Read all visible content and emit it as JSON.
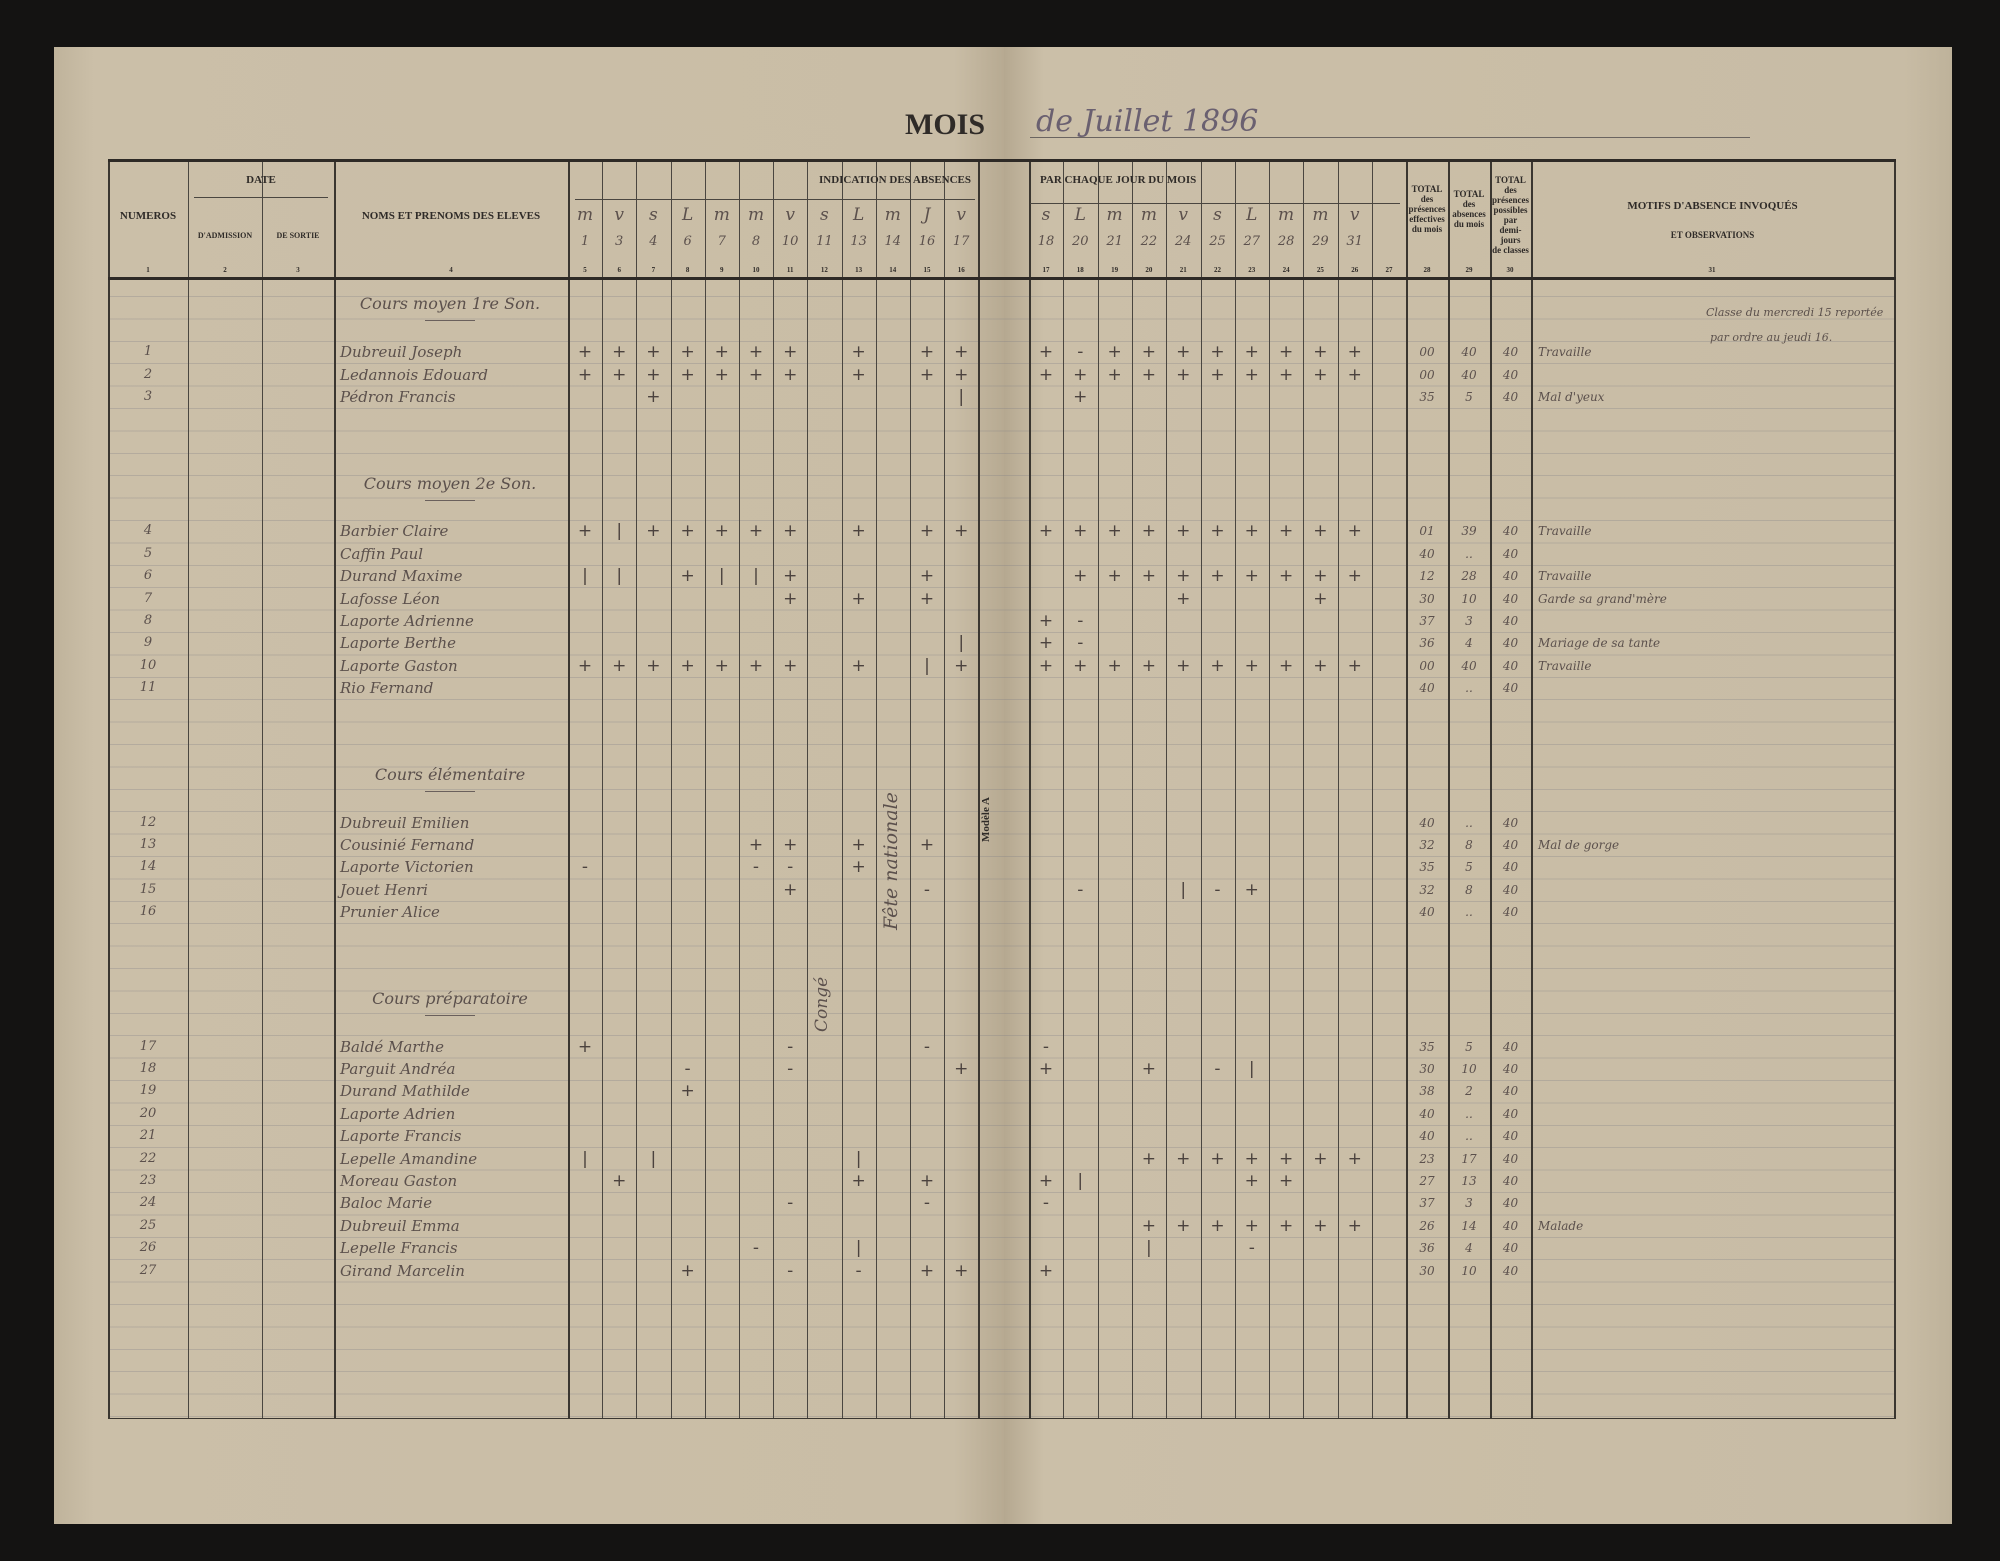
{
  "header": {
    "mois_label": "MOIS",
    "month_handwritten": "de Juillet 1896",
    "title_absences": "INDICATION DES ABSENCES",
    "title_par_jour": "PAR CHAQUE JOUR DU MOIS",
    "form_label": "Modèle A"
  },
  "columns": {
    "numeros": "NUMEROS",
    "date": "DATE",
    "admission": "D'ADMISSION",
    "sortie": "DE SORTIE",
    "noms": "NOMS ET PRENOMS DES ELEVES",
    "total_presences": [
      "TOTAL",
      "des",
      "présences",
      "effectives",
      "du mois"
    ],
    "total_absences": [
      "TOTAL",
      "des",
      "absences",
      "du mois"
    ],
    "total_possibles": [
      "TOTAL",
      "des",
      "présences",
      "possibles",
      "par",
      "demi-",
      "jours",
      "de classes"
    ],
    "motifs": "MOTIFS D'ABSENCE INVOQUÉS",
    "observations": "ET OBSERVATIONS",
    "numbers": [
      "1",
      "2",
      "3",
      "4",
      "5",
      "6",
      "7",
      "8",
      "9",
      "10",
      "11",
      "12",
      "13",
      "14",
      "15",
      "16",
      "17",
      "18",
      "19",
      "20",
      "21",
      "22",
      "23",
      "24",
      "25",
      "26",
      "27",
      "28",
      "29",
      "30",
      "31"
    ]
  },
  "days_left": [
    {
      "letter": "m",
      "date": "1"
    },
    {
      "letter": "v",
      "date": "3"
    },
    {
      "letter": "s",
      "date": "4"
    },
    {
      "letter": "L",
      "date": "6"
    },
    {
      "letter": "m",
      "date": "7"
    },
    {
      "letter": "m",
      "date": "8"
    },
    {
      "letter": "v",
      "date": "10"
    },
    {
      "letter": "s",
      "date": "11"
    },
    {
      "letter": "L",
      "date": "13"
    },
    {
      "letter": "m",
      "date": "14"
    },
    {
      "letter": "J",
      "date": "16"
    },
    {
      "letter": "v",
      "date": "17"
    }
  ],
  "days_right": [
    {
      "letter": "s",
      "date": "18"
    },
    {
      "letter": "L",
      "date": "20"
    },
    {
      "letter": "m",
      "date": "21"
    },
    {
      "letter": "m",
      "date": "22"
    },
    {
      "letter": "v",
      "date": "24"
    },
    {
      "letter": "s",
      "date": "25"
    },
    {
      "letter": "L",
      "date": "27"
    },
    {
      "letter": "m",
      "date": "28"
    },
    {
      "letter": "m",
      "date": "29"
    },
    {
      "letter": "v",
      "date": "31"
    },
    {
      "letter": "",
      "date": ""
    }
  ],
  "rows": [
    {
      "type": "section",
      "line": 1,
      "title": "Cours moyen 1re Son."
    },
    {
      "type": "student",
      "line": 3,
      "num": "1",
      "name": "Dubreuil Joseph",
      "left": "+++++++ + ++",
      "right": "+-++++++++ ",
      "presences": "00",
      "absences": "40",
      "possibles": "40",
      "motif": "Travaille"
    },
    {
      "type": "student",
      "line": 4,
      "num": "2",
      "name": "Ledannois Edouard",
      "left": "+++++++ + ++",
      "right": "++++++++++ ",
      "presences": "00",
      "absences": "40",
      "possibles": "40",
      "motif": ""
    },
    {
      "type": "student",
      "line": 5,
      "num": "3",
      "name": "Pédron Francis",
      "left": "  +        |",
      "right": " +         ",
      "presences": "35",
      "absences": "5",
      "possibles": "40",
      "motif": "Mal d'yeux"
    },
    {
      "type": "section",
      "line": 9,
      "title": "Cours moyen 2e Son."
    },
    {
      "type": "student",
      "line": 11,
      "num": "4",
      "name": "Barbier Claire",
      "left": "+|+++++ + ++",
      "right": "++++++++++ ",
      "presences": "01",
      "absences": "39",
      "possibles": "40",
      "motif": "Travaille"
    },
    {
      "type": "student",
      "line": 12,
      "num": "5",
      "name": "Caffin Paul",
      "left": "            ",
      "right": "           ",
      "presences": "40",
      "absences": "..",
      "possibles": "40",
      "motif": ""
    },
    {
      "type": "student",
      "line": 13,
      "num": "6",
      "name": "Durand Maxime",
      "left": "|| +||+   + ",
      "right": " +++++++++ ",
      "presences": "12",
      "absences": "28",
      "possibles": "40",
      "motif": "Travaille"
    },
    {
      "type": "student",
      "line": 14,
      "num": "7",
      "name": "Lafosse Léon",
      "left": "      + + + ",
      "right": "    +   +  ",
      "presences": "30",
      "absences": "10",
      "possibles": "40",
      "motif": "Garde sa grand'mère"
    },
    {
      "type": "student",
      "line": 15,
      "num": "8",
      "name": "Laporte Adrienne",
      "left": "            ",
      "right": "+-         ",
      "presences": "37",
      "absences": "3",
      "possibles": "40",
      "motif": ""
    },
    {
      "type": "student",
      "line": 16,
      "num": "9",
      "name": "Laporte Berthe",
      "left": "           |",
      "right": "+-         ",
      "presences": "36",
      "absences": "4",
      "possibles": "40",
      "motif": "Mariage de sa tante"
    },
    {
      "type": "student",
      "line": 17,
      "num": "10",
      "name": "Laporte Gaston",
      "left": "+++++++ + |+",
      "right": "++++++++++ ",
      "presences": "00",
      "absences": "40",
      "possibles": "40",
      "motif": "Travaille"
    },
    {
      "type": "student",
      "line": 18,
      "num": "11",
      "name": "Rio Fernand",
      "left": "            ",
      "right": "           ",
      "presences": "40",
      "absences": "..",
      "possibles": "40",
      "motif": ""
    },
    {
      "type": "section",
      "line": 22,
      "title": "Cours élémentaire"
    },
    {
      "type": "student",
      "line": 24,
      "num": "12",
      "name": "Dubreuil Emilien",
      "left": "            ",
      "right": "           ",
      "presences": "40",
      "absences": "..",
      "possibles": "40",
      "motif": ""
    },
    {
      "type": "student",
      "line": 25,
      "num": "13",
      "name": "Cousinié Fernand",
      "left": "     ++ + + ",
      "right": "           ",
      "presences": "32",
      "absences": "8",
      "possibles": "40",
      "motif": "Mal de gorge"
    },
    {
      "type": "student",
      "line": 26,
      "num": "14",
      "name": "Laporte Victorien",
      "left": "-    -- +   ",
      "right": "           ",
      "presences": "35",
      "absences": "5",
      "possibles": "40",
      "motif": ""
    },
    {
      "type": "student",
      "line": 27,
      "num": "15",
      "name": "Jouet Henri",
      "left": "      +   - ",
      "right": " -  |-+    ",
      "presences": "32",
      "absences": "8",
      "possibles": "40",
      "motif": ""
    },
    {
      "type": "student",
      "line": 28,
      "num": "16",
      "name": "Prunier Alice",
      "left": "            ",
      "right": "           ",
      "presences": "40",
      "absences": "..",
      "possibles": "40",
      "motif": ""
    },
    {
      "type": "section",
      "line": 32,
      "title": "Cours préparatoire"
    },
    {
      "type": "student",
      "line": 34,
      "num": "17",
      "name": "Baldé Marthe",
      "left": "+     -   - ",
      "right": "-          ",
      "presences": "35",
      "absences": "5",
      "possibles": "40",
      "motif": ""
    },
    {
      "type": "student",
      "line": 35,
      "num": "18",
      "name": "Parguit Andréa",
      "left": "   -  -    +",
      "right": "+  + -|    ",
      "presences": "30",
      "absences": "10",
      "possibles": "40",
      "motif": ""
    },
    {
      "type": "student",
      "line": 36,
      "num": "19",
      "name": "Durand Mathilde",
      "left": "   +        ",
      "right": "           ",
      "presences": "38",
      "absences": "2",
      "possibles": "40",
      "motif": ""
    },
    {
      "type": "student",
      "line": 37,
      "num": "20",
      "name": "Laporte Adrien",
      "left": "            ",
      "right": "           ",
      "presences": "40",
      "absences": "..",
      "possibles": "40",
      "motif": ""
    },
    {
      "type": "student",
      "line": 38,
      "num": "21",
      "name": "Laporte Francis",
      "left": "            ",
      "right": "           ",
      "presences": "40",
      "absences": "..",
      "possibles": "40",
      "motif": ""
    },
    {
      "type": "student",
      "line": 39,
      "num": "22",
      "name": "Lepelle Amandine",
      "left": "| |     |   ",
      "right": "   +++++++ ",
      "presences": "23",
      "absences": "17",
      "possibles": "40",
      "motif": ""
    },
    {
      "type": "student",
      "line": 40,
      "num": "23",
      "name": "Moreau Gaston",
      "left": " +      + + ",
      "right": "+|    ++   ",
      "presences": "27",
      "absences": "13",
      "possibles": "40",
      "motif": ""
    },
    {
      "type": "student",
      "line": 41,
      "num": "24",
      "name": "Baloc Marie",
      "left": "      -   - ",
      "right": "-          ",
      "presences": "37",
      "absences": "3",
      "possibles": "40",
      "motif": ""
    },
    {
      "type": "student",
      "line": 42,
      "num": "25",
      "name": "Dubreuil Emma",
      "left": "            ",
      "right": "   +++++++ ",
      "presences": "26",
      "absences": "14",
      "possibles": "40",
      "motif": "Malade"
    },
    {
      "type": "student",
      "line": 43,
      "num": "26",
      "name": "Lepelle Francis",
      "left": "     -  |   ",
      "right": "   |  -    ",
      "presences": "36",
      "absences": "4",
      "possibles": "40",
      "motif": ""
    },
    {
      "type": "student",
      "line": 44,
      "num": "27",
      "name": "Girand Marcelin",
      "left": "   +  - - ++",
      "right": "+          ",
      "presences": "30",
      "absences": "10",
      "possibles": "40",
      "motif": ""
    }
  ],
  "annotations": {
    "conge": "Congé",
    "fete": "Fête nationale",
    "note": [
      "Classe du mercredi 15 reportée",
      "par ordre au jeudi 16."
    ]
  },
  "colors": {
    "paper": "#c8bca5",
    "ink": "#5b504c",
    "print": "#2f2b28",
    "background": "#141312"
  }
}
